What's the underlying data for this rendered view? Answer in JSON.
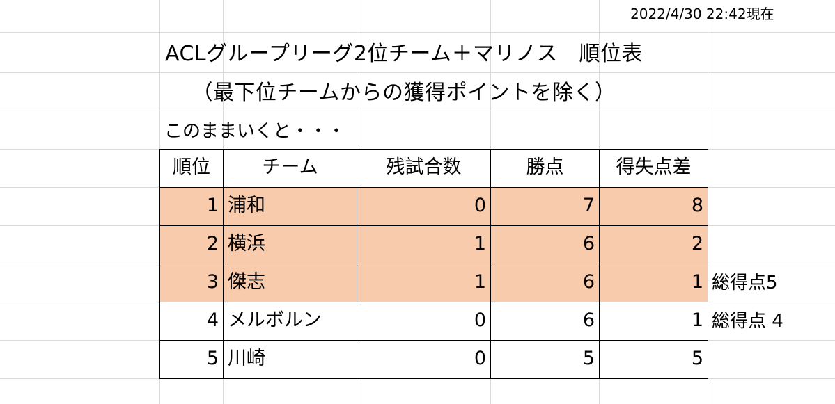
{
  "timestamp": "2022/4/30  22:42現在",
  "title": "ACLグループリーグ2位チーム＋マリノス　順位表",
  "subtitle": "（最下位チームからの獲得ポイントを除く）",
  "note": "このままいくと・・・",
  "highlight_color": "#f8cbad",
  "table": {
    "headers": [
      "順位",
      "チーム",
      "残試合数",
      "勝点",
      "得失点差"
    ],
    "rows": [
      {
        "rank": "1",
        "team": "浦和",
        "remaining": "0",
        "points": "7",
        "gd": "8",
        "highlight": true,
        "note": ""
      },
      {
        "rank": "2",
        "team": "横浜",
        "remaining": "1",
        "points": "6",
        "gd": "2",
        "highlight": true,
        "note": ""
      },
      {
        "rank": "3",
        "team": "傑志",
        "remaining": "1",
        "points": "6",
        "gd": "1",
        "highlight": true,
        "note": "総得点5"
      },
      {
        "rank": "4",
        "team": "メルボルン",
        "remaining": "0",
        "points": "6",
        "gd": "1",
        "highlight": false,
        "note": "総得点 4"
      },
      {
        "rank": "5",
        "team": "川崎",
        "remaining": "0",
        "points": "5",
        "gd": "5",
        "highlight": false,
        "note": ""
      }
    ]
  }
}
